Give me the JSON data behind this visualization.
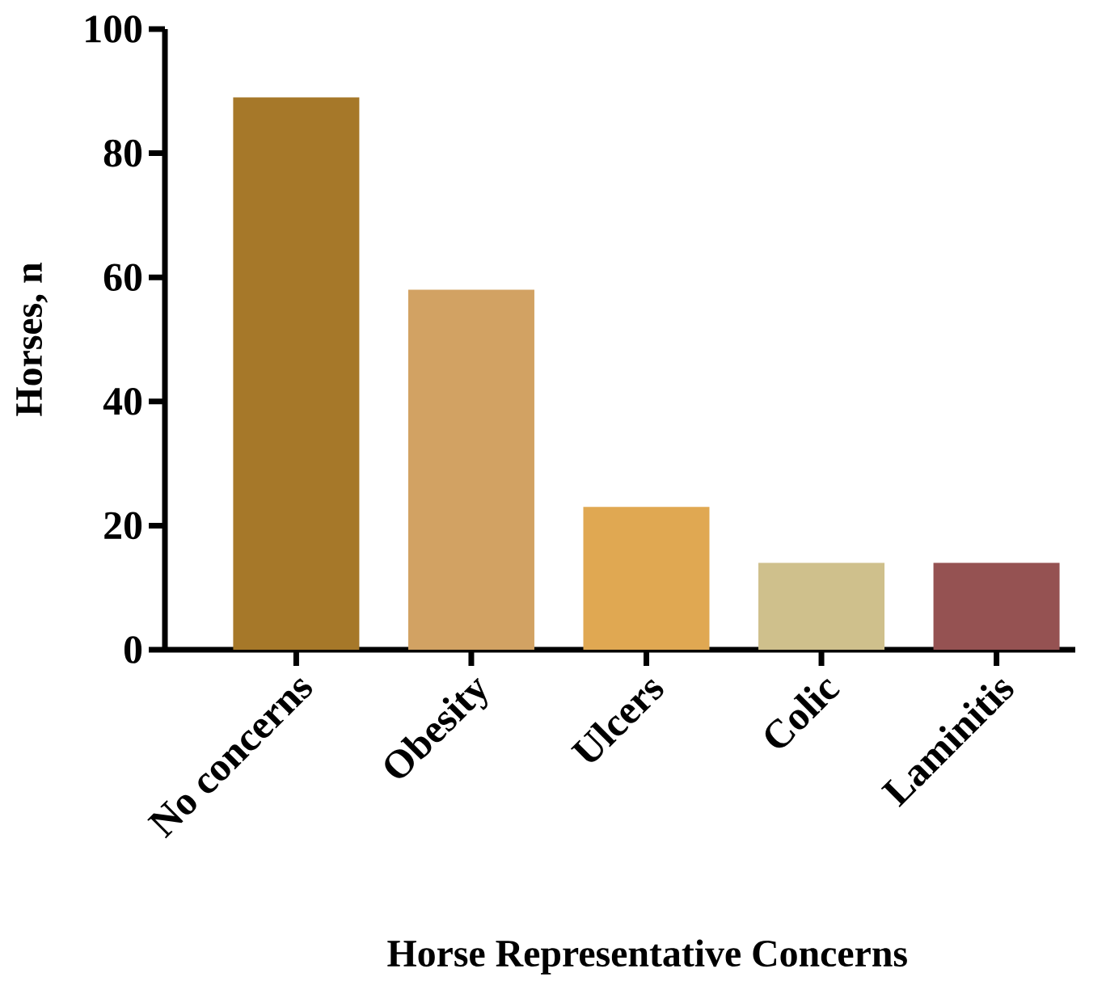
{
  "chart_data": {
    "type": "bar",
    "xlabel": "Horse Representative Concerns",
    "ylabel": "Horses, n",
    "categories": [
      "No concerns",
      "Obesity",
      "Ulcers",
      "Colic",
      "Laminitis"
    ],
    "values": [
      89,
      58,
      23,
      14,
      14
    ],
    "colors": [
      "#a67829",
      "#d2a263",
      "#e0a852",
      "#cfc08c",
      "#955252"
    ],
    "ylim": [
      0,
      100
    ],
    "yticks": [
      0,
      20,
      40,
      60,
      80,
      100
    ],
    "grid": false
  }
}
